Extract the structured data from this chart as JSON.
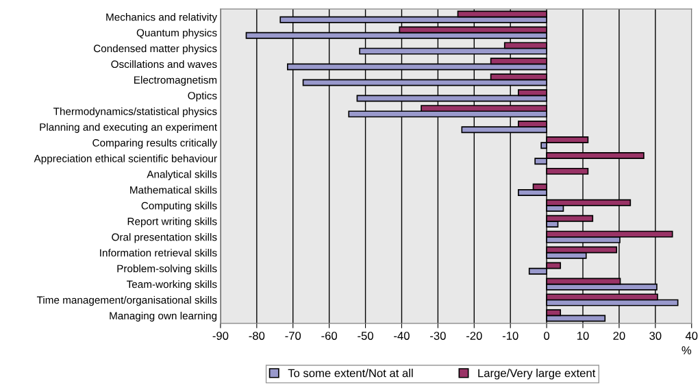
{
  "chart_data": {
    "type": "bar",
    "orientation": "horizontal",
    "xlabel": "%",
    "categories": [
      "Mechanics and relativity",
      "Quantum physics",
      "Condensed matter physics",
      "Oscillations and waves",
      "Electromagnetism",
      "Optics",
      "Thermodynamics/statistical physics",
      "Planning and executing an experiment",
      "Comparing results critically",
      "Appreciation ethical scientific behaviour",
      "Analytical skills",
      "Mathematical skills",
      "Computing skills",
      "Report writing skills",
      "Oral presentation skills",
      "Information retrieval skills",
      "Problem-solving skills",
      "Team-working skills",
      "Time management/organisational skills",
      "Managing own learning"
    ],
    "series": [
      {
        "name": "To some extent/Not at all",
        "color": "#9999cc",
        "values": [
          -73.5,
          -82.9,
          -51.6,
          -71.5,
          -67.2,
          -52.3,
          -54.6,
          -23.4,
          -1.5,
          -3.2,
          null,
          -7.8,
          4.6,
          3.1,
          20.2,
          10.9,
          -4.8,
          30.4,
          36.2,
          16.1
        ]
      },
      {
        "name": "Large/Very large extent",
        "color": "#993366",
        "values": [
          -24.5,
          -40.6,
          -11.6,
          -15.4,
          -15.4,
          -7.8,
          -34.6,
          -7.8,
          11.4,
          26.8,
          11.4,
          -3.7,
          23.1,
          12.7,
          34.7,
          19.3,
          3.8,
          20.3,
          30.6,
          3.8
        ]
      }
    ],
    "xlim": [
      -90,
      40
    ],
    "xticks": [
      -90,
      -80,
      -70,
      -60,
      -50,
      -40,
      -30,
      -20,
      -10,
      0,
      10,
      20,
      30,
      40
    ],
    "grid": "x",
    "legend": "bottom"
  }
}
